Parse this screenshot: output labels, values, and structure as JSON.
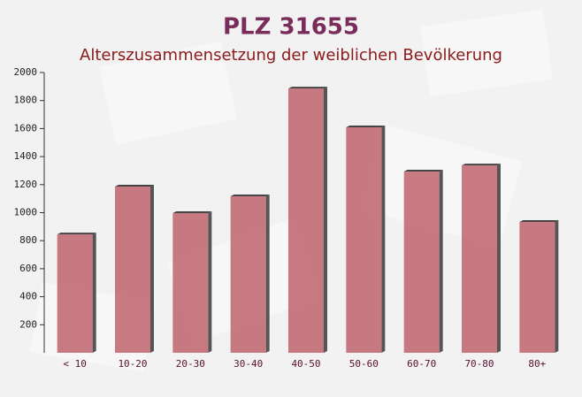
{
  "chart_data": {
    "type": "bar",
    "title": "PLZ 31655",
    "subtitle": "Alterszusammensetzung der weiblichen Bevölkerung",
    "categories": [
      "< 10",
      "10-20",
      "20-30",
      "30-40",
      "40-50",
      "50-60",
      "60-70",
      "70-80",
      "80+"
    ],
    "values": [
      845,
      1186,
      997,
      1117,
      1886,
      1609,
      1293,
      1337,
      934
    ],
    "color": "#c0646e",
    "ylim": [
      0,
      2000
    ],
    "yticks": [
      200,
      400,
      600,
      800,
      1000,
      1200,
      1400,
      1600,
      1800,
      2000
    ]
  }
}
